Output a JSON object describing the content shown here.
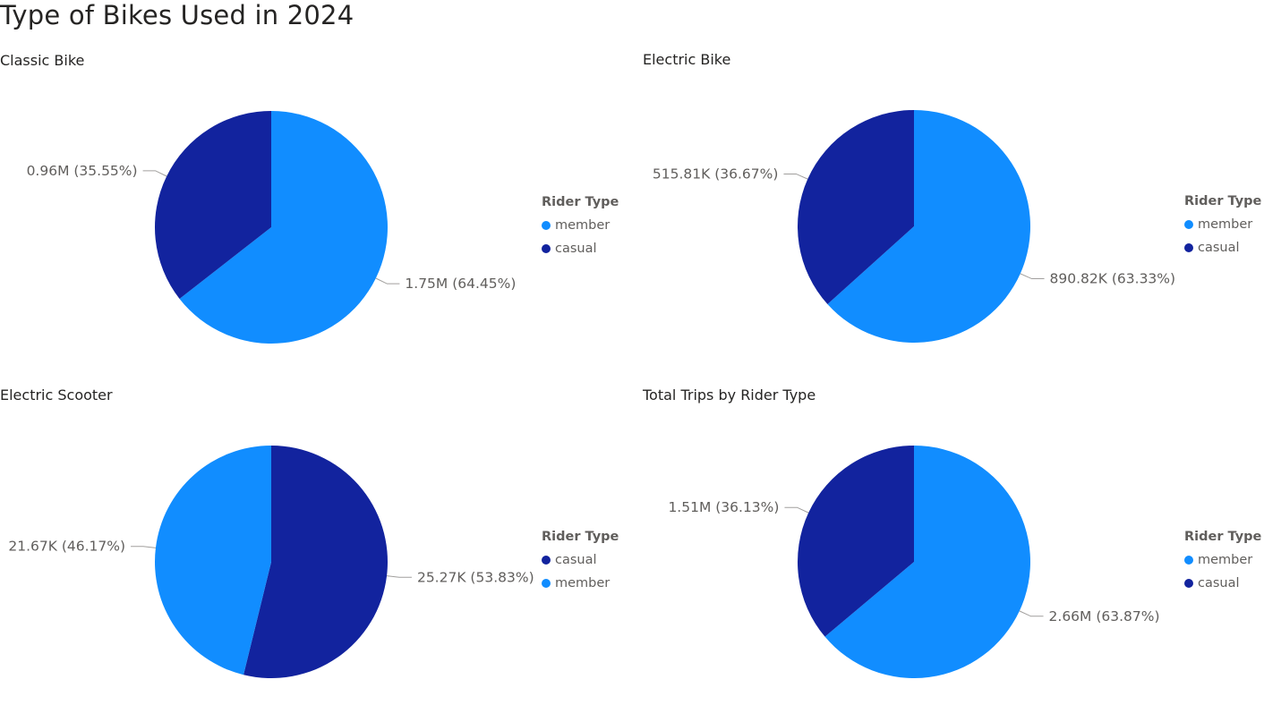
{
  "title": "Type of Bikes Used in 2024",
  "colors": {
    "member": "#118DFF",
    "casual": "#12239E"
  },
  "chart_data": [
    {
      "type": "pie",
      "title": "Classic Bike",
      "legend_title": "Rider Type",
      "legend_position": "right",
      "slices": [
        {
          "name": "member",
          "value": 1.75,
          "unit": "M",
          "percent": 64.45,
          "label": "1.75M (64.45%)"
        },
        {
          "name": "casual",
          "value": 0.96,
          "unit": "M",
          "percent": 35.55,
          "label": "0.96M (35.55%)"
        }
      ]
    },
    {
      "type": "pie",
      "title": "Electric Bike",
      "legend_title": "Rider Type",
      "legend_position": "right",
      "slices": [
        {
          "name": "member",
          "value": 890.82,
          "unit": "K",
          "percent": 63.33,
          "label": "890.82K (63.33%)"
        },
        {
          "name": "casual",
          "value": 515.81,
          "unit": "K",
          "percent": 36.67,
          "label": "515.81K (36.67%)"
        }
      ]
    },
    {
      "type": "pie",
      "title": "Electric Scooter",
      "legend_title": "Rider Type",
      "legend_position": "right",
      "slices": [
        {
          "name": "casual",
          "value": 25.27,
          "unit": "K",
          "percent": 53.83,
          "label": "25.27K (53.83%)"
        },
        {
          "name": "member",
          "value": 21.67,
          "unit": "K",
          "percent": 46.17,
          "label": "21.67K (46.17%)"
        }
      ]
    },
    {
      "type": "pie",
      "title": "Total Trips by Rider Type",
      "legend_title": "Rider Type",
      "legend_position": "right",
      "slices": [
        {
          "name": "member",
          "value": 2.66,
          "unit": "M",
          "percent": 63.87,
          "label": "2.66M (63.87%)"
        },
        {
          "name": "casual",
          "value": 1.51,
          "unit": "M",
          "percent": 36.13,
          "label": "1.51M (36.13%)"
        }
      ]
    }
  ]
}
